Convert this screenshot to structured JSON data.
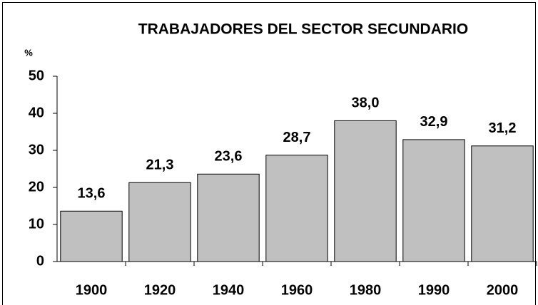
{
  "chart_data": {
    "type": "bar",
    "title": "TRABAJADORES DEL SECTOR SECUNDARIO",
    "y_label": "%",
    "categories": [
      "1900",
      "1920",
      "1940",
      "1960",
      "1980",
      "1990",
      "2000"
    ],
    "values": [
      13.6,
      21.3,
      23.6,
      28.7,
      38.0,
      32.9,
      31.2
    ],
    "value_labels": [
      "13,6",
      "21,3",
      "23,6",
      "28,7",
      "38,0",
      "32,9",
      "31,2"
    ],
    "color": "#c0c0c0",
    "ylim": [
      0,
      50
    ],
    "yticks": [
      0,
      10,
      20,
      30,
      40,
      50
    ]
  }
}
